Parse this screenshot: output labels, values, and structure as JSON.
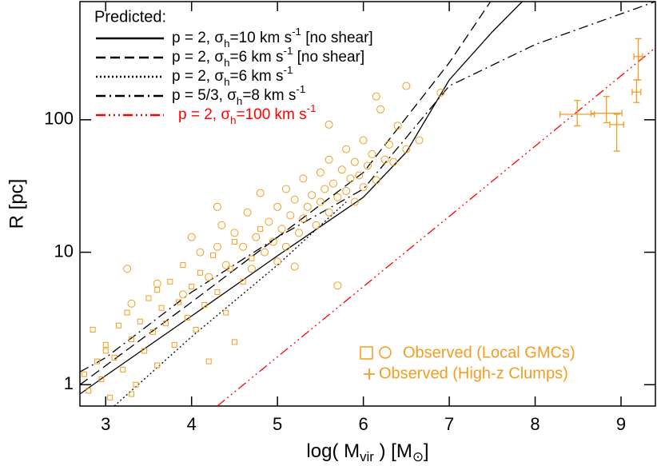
{
  "chart_data": {
    "type": "scatter",
    "xlabel": [
      "log( M",
      "vir",
      " )  [M",
      "⊙",
      "]"
    ],
    "ylabel": "R  [pc]",
    "xlim": [
      2.7,
      9.4
    ],
    "ylim": [
      0.69,
      780
    ],
    "log_y": true,
    "xticks": [
      3,
      4,
      5,
      6,
      7,
      8,
      9
    ],
    "yticks": [
      1,
      10,
      100
    ],
    "legend_title": "Predicted:",
    "lines": [
      {
        "label": [
          "p = 2, σ",
          "h",
          "=10 km s",
          "-1",
          " [no shear]"
        ],
        "color": "#000000",
        "linestyle": "solid",
        "x": [
          2.7,
          3,
          4,
          5,
          6,
          6.5,
          7,
          7.5,
          7.85
        ],
        "y": [
          0.85,
          1.17,
          3.3,
          9.4,
          26,
          57,
          200,
          460,
          780
        ]
      },
      {
        "label": [
          "p = 2, σ",
          "h",
          "=6 km s",
          "-1",
          " [no shear]"
        ],
        "color": "#000000",
        "linestyle": "dashed",
        "x": [
          2.7,
          4,
          5,
          6,
          7,
          7.48
        ],
        "y": [
          1.0,
          4.2,
          13,
          40,
          270,
          780
        ]
      },
      {
        "label": [
          "p = 2, σ",
          "h",
          "=6 km s",
          "-1"
        ],
        "color": "#000000",
        "linestyle": "dotted",
        "x": [
          3.1,
          4,
          5,
          5.8
        ],
        "y": [
          0.69,
          2.3,
          8,
          24
        ]
      },
      {
        "label": [
          "p = 5/3, σ",
          "h",
          "=8 km s",
          "-1"
        ],
        "color": "#000000",
        "linestyle": "dashdot",
        "x": [
          2.7,
          3,
          4,
          5,
          6,
          7,
          8,
          9.4
        ],
        "y": [
          1.25,
          1.6,
          5,
          13,
          30,
          180,
          370,
          780
        ]
      },
      {
        "label": [
          "p = 2, σ",
          "h",
          "=100 km s",
          "-1"
        ],
        "color": "#ff0000",
        "linestyle": "dashdotdotdot",
        "x": [
          4.3,
          9.4
        ],
        "y": [
          0.69,
          350
        ]
      }
    ],
    "observed_local": {
      "name": "Observed (Local GMCs)",
      "color": "#f39c1e",
      "squares": {
        "x": [
          2.75,
          2.8,
          2.9,
          2.95,
          3.0,
          3.05,
          3.1,
          3.15,
          3.2,
          3.25,
          3.3,
          3.35,
          3.4,
          3.45,
          3.5,
          3.55,
          3.6,
          3.65,
          3.7,
          3.75,
          3.8,
          3.85,
          3.9,
          3.95,
          4.0,
          4.05,
          4.1,
          4.15,
          4.2,
          4.25,
          4.3,
          4.4,
          4.45,
          4.5,
          4.6,
          4.7,
          4.8,
          3.0,
          2.85,
          3.6,
          4.5,
          3.3
        ],
        "y": [
          1.2,
          0.9,
          1.5,
          1.1,
          2.0,
          0.8,
          1.6,
          2.8,
          1.3,
          3.5,
          2.2,
          1.0,
          3.0,
          1.8,
          4.5,
          2.5,
          1.4,
          3.8,
          2.9,
          6.0,
          2.0,
          4.2,
          8.0,
          3.2,
          5.5,
          2.6,
          7.0,
          4.0,
          1.5,
          9.5,
          5.0,
          3.5,
          7.5,
          12,
          6.0,
          9.0,
          15,
          1.8,
          2.6,
          5.2,
          2.1,
          0.85
        ]
      },
      "circles": {
        "x": [
          3.25,
          3.3,
          3.6,
          3.9,
          4.0,
          4.1,
          4.2,
          4.3,
          4.35,
          4.4,
          4.5,
          4.6,
          4.65,
          4.7,
          4.75,
          4.8,
          4.85,
          4.9,
          4.95,
          5.0,
          5.0,
          5.05,
          5.1,
          5.1,
          5.15,
          5.2,
          5.25,
          5.3,
          5.3,
          5.35,
          5.4,
          5.45,
          5.5,
          5.5,
          5.55,
          5.6,
          5.6,
          5.65,
          5.7,
          5.7,
          5.75,
          5.8,
          5.8,
          5.85,
          5.9,
          5.9,
          5.95,
          6.0,
          6.0,
          6.05,
          6.1,
          6.15,
          6.2,
          6.25,
          6.3,
          6.35,
          6.4,
          6.5,
          6.5,
          6.65,
          6.9,
          5.6,
          6.15,
          5.2,
          4.3
        ],
        "y": [
          7.5,
          4.1,
          5.8,
          4.8,
          13,
          10,
          6.5,
          11,
          16,
          8,
          14,
          11,
          20,
          7.5,
          13,
          28,
          10,
          17,
          12,
          22,
          8.5,
          15,
          30,
          11,
          19,
          25,
          14,
          36,
          18,
          22,
          27,
          16,
          40,
          24,
          30,
          20,
          50,
          33,
          26,
          5.6,
          42,
          29,
          60,
          36,
          24,
          48,
          38,
          31,
          70,
          45,
          55,
          35,
          120,
          50,
          65,
          48,
          90,
          180,
          60,
          70,
          160,
          92,
          150,
          7.8,
          22
        ]
      }
    },
    "observed_highz": {
      "name": "Observed (High-z Clumps)",
      "color": "#f39c1e",
      "x": [
        8.49,
        8.83,
        8.95,
        9.18,
        9.2
      ],
      "y": [
        110,
        112,
        92,
        162,
        300
      ],
      "xerr": [
        0.2,
        0.18,
        0.08,
        0.05,
        0.05
      ],
      "y_low": [
        90,
        95,
        58,
        135,
        200
      ],
      "y_high": [
        140,
        150,
        110,
        200,
        410
      ]
    }
  }
}
